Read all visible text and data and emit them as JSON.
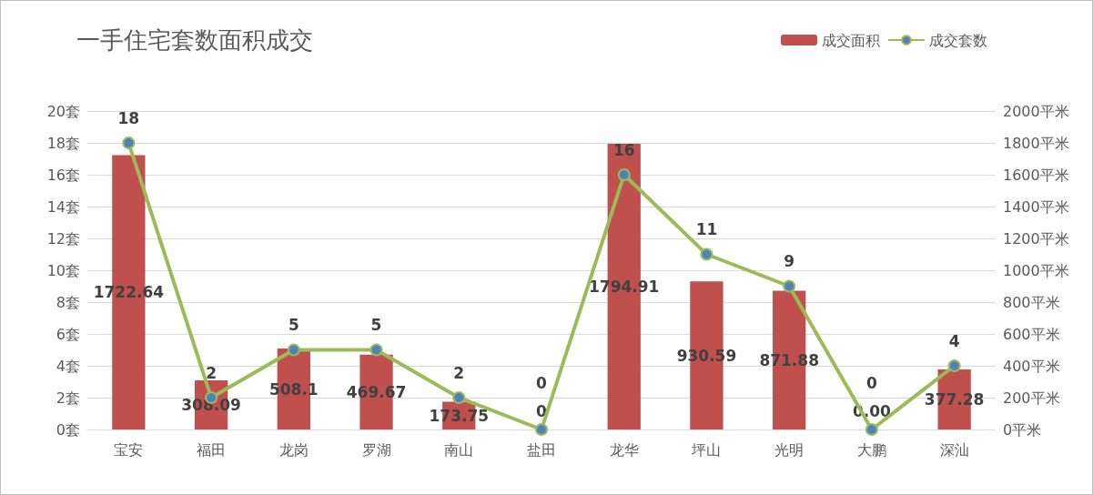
{
  "chart_data": {
    "type": "bar",
    "title": "一手住宅套数面积成交",
    "categories": [
      "宝安",
      "福田",
      "龙岗",
      "罗湖",
      "南山",
      "盐田",
      "龙华",
      "坪山",
      "光明",
      "大鹏",
      "深汕"
    ],
    "series": [
      {
        "name": "成交面积",
        "axis": "y2",
        "color": "#c0504d",
        "values": [
          1722.64,
          308.09,
          508.1,
          469.67,
          173.75,
          0,
          1794.91,
          930.59,
          871.88,
          0,
          377.28
        ],
        "value_labels": [
          "1722.64",
          "308.09",
          "508.1",
          "469.67",
          "173.75",
          "0",
          "1794.91",
          "930.59",
          "871.88",
          "0.00",
          "377.28"
        ]
      },
      {
        "name": "成交套数",
        "type": "line",
        "color": "#9bbb59",
        "values": [
          18,
          2,
          5,
          5,
          2,
          0,
          16,
          11,
          9,
          0,
          4
        ],
        "value_labels": [
          "18",
          "2",
          "5",
          "5",
          "2",
          "0",
          "16",
          "11",
          "9",
          "0",
          "4"
        ]
      }
    ],
    "ylim": [
      0,
      20
    ],
    "yticks": [
      {
        "value": 0,
        "label": "0套"
      },
      {
        "value": 2,
        "label": "2套"
      },
      {
        "value": 4,
        "label": "4套"
      },
      {
        "value": 6,
        "label": "6套"
      },
      {
        "value": 8,
        "label": "8套"
      },
      {
        "value": 10,
        "label": "10套"
      },
      {
        "value": 12,
        "label": "12套"
      },
      {
        "value": 14,
        "label": "14套"
      },
      {
        "value": 16,
        "label": "16套"
      },
      {
        "value": 18,
        "label": "18套"
      },
      {
        "value": 20,
        "label": "20套"
      }
    ],
    "y2lim": [
      0,
      2000
    ],
    "y2ticks": [
      {
        "value": 0,
        "label": "0平米"
      },
      {
        "value": 200,
        "label": "200平米"
      },
      {
        "value": 400,
        "label": "400平米"
      },
      {
        "value": 600,
        "label": "600平米"
      },
      {
        "value": 800,
        "label": "800平米"
      },
      {
        "value": 1000,
        "label": "1000平米"
      },
      {
        "value": 1200,
        "label": "1200平米"
      },
      {
        "value": 1400,
        "label": "1400平米"
      },
      {
        "value": 1600,
        "label": "1600平米"
      },
      {
        "value": 1800,
        "label": "1800平米"
      },
      {
        "value": 2000,
        "label": "2000平米"
      }
    ],
    "grid": "y",
    "legend": "top right",
    "marker": "circle",
    "line_style": "solid"
  }
}
